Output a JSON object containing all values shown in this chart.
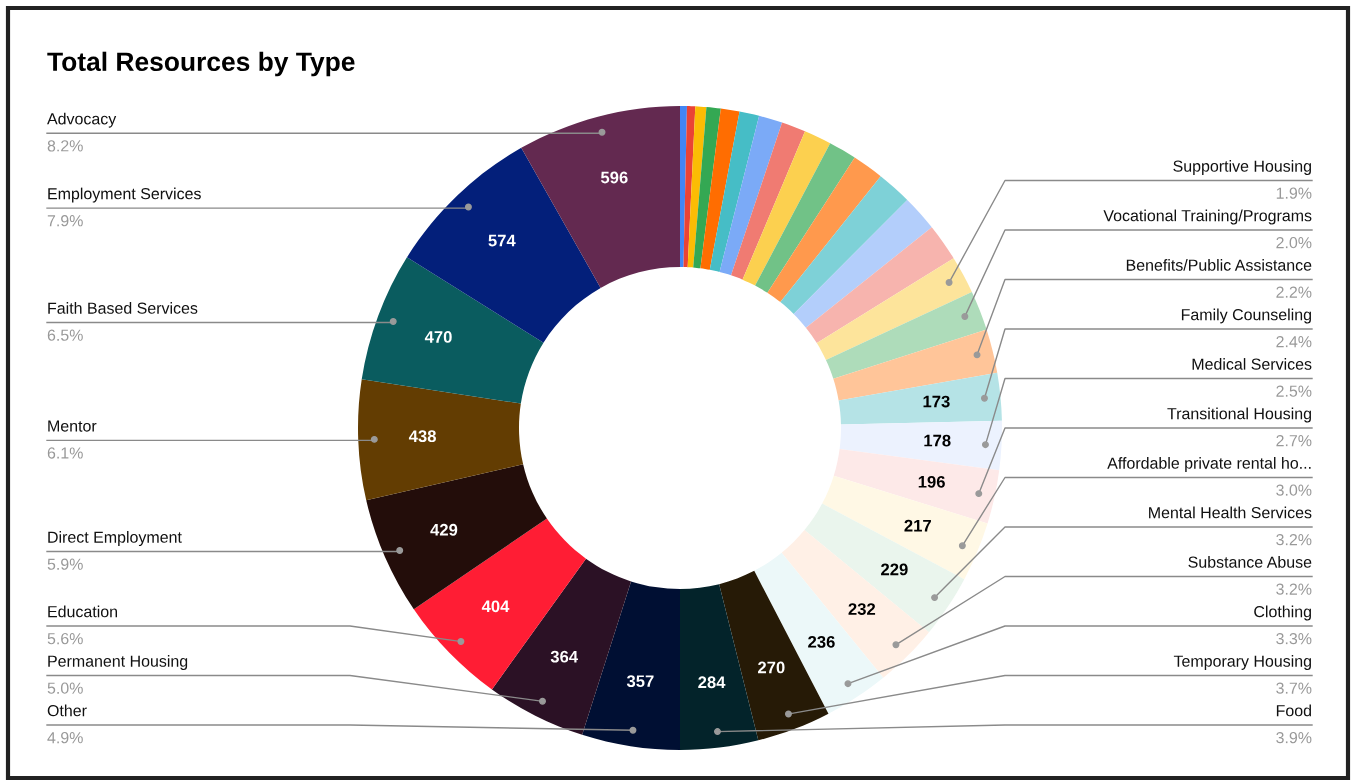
{
  "chart_data": {
    "type": "donut",
    "title": "Total Resources by Type",
    "categories": [
      null,
      null,
      null,
      null,
      null,
      null,
      null,
      null,
      null,
      null,
      null,
      null,
      null,
      null,
      "Supportive Housing",
      "Vocational Training/Programs",
      "Benefits/Public Assistance",
      "Family Counseling",
      "Medical Services",
      "Transitional Housing",
      "Affordable private rental ho...",
      "Mental Health Services",
      "Substance Abuse",
      "Clothing",
      "Temporary Housing",
      "Food",
      "Other",
      "Permanent Housing",
      "Education",
      "Direct Employment",
      "Mentor",
      "Faith Based Services",
      "Employment Services",
      "Advocacy"
    ],
    "values": [
      25,
      30,
      40,
      52,
      68,
      72,
      86,
      88,
      100,
      102,
      115,
      128,
      132,
      136,
      138,
      145,
      160,
      173,
      178,
      196,
      217,
      229,
      232,
      236,
      270,
      284,
      357,
      364,
      404,
      429,
      438,
      470,
      574,
      596
    ],
    "colors": [
      "#4285f4",
      "#ea4335",
      "#fbbc04",
      "#34a853",
      "#ff6d01",
      "#46bdc6",
      "#7baaf7",
      "#f07b72",
      "#fcd04f",
      "#71c287",
      "#ff994d",
      "#7ed1d7",
      "#b3cefb",
      "#f7b4ae",
      "#fde49b",
      "#aedcba",
      "#ffc599",
      "#b5e3e6",
      "#ecf2fe",
      "#fde9e8",
      "#fff8e5",
      "#eaf5ed",
      "#fff0e6",
      "#ecf8f9",
      "#261a06",
      "#03232a",
      "#000f33",
      "#2b1125",
      "#ff1d34",
      "#230d0a",
      "#633d02",
      "#0a5c5f",
      "#031f7a",
      "#632950"
    ],
    "value_labels": [
      null,
      null,
      null,
      null,
      null,
      null,
      null,
      null,
      null,
      null,
      null,
      null,
      null,
      null,
      null,
      null,
      null,
      "173",
      "178",
      "196",
      "217",
      "229",
      "232",
      "236",
      "270",
      "284",
      "357",
      "364",
      "404",
      "429",
      "438",
      "470",
      "574",
      "596"
    ],
    "annotations": [
      "1.9%",
      "2.0%",
      "2.2%",
      "2.4%",
      "2.5%",
      "2.7%",
      "3.0%",
      "3.2%",
      "3.2%",
      "3.3%",
      "3.7%",
      "3.9%",
      "4.9%",
      "5.0%",
      "5.6%",
      "5.9%",
      "6.1%",
      "6.5%",
      "7.9%",
      "8.2%"
    ]
  }
}
